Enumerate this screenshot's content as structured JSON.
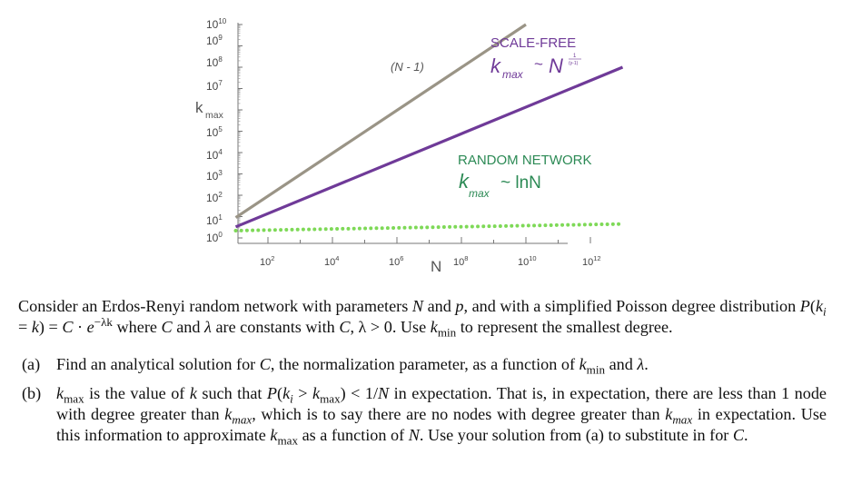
{
  "chart_data": {
    "type": "line",
    "title": "",
    "xlabel": "N",
    "ylabel_main": "k",
    "ylabel_sub": "max",
    "y_ticks": [
      {
        "base": "10",
        "exp": "10"
      },
      {
        "base": "10",
        "exp": "9"
      },
      {
        "base": "10",
        "exp": "8"
      },
      {
        "base": "10",
        "exp": "7"
      },
      {
        "base": "10",
        "exp": "5"
      },
      {
        "base": "10",
        "exp": "4"
      },
      {
        "base": "10",
        "exp": "3"
      },
      {
        "base": "10",
        "exp": "2"
      },
      {
        "base": "10",
        "exp": "1"
      },
      {
        "base": "10",
        "exp": "0"
      }
    ],
    "x_ticks": [
      {
        "base": "10",
        "exp": "2"
      },
      {
        "base": "10",
        "exp": "4"
      },
      {
        "base": "10",
        "exp": "6"
      },
      {
        "base": "10",
        "exp": "8"
      },
      {
        "base": "10",
        "exp": "10"
      },
      {
        "base": "10",
        "exp": "12"
      }
    ],
    "x_scale": "log",
    "y_scale": "log",
    "x_range": [
      10,
      10000000000000
    ],
    "y_range": [
      1,
      10000000000
    ],
    "series": [
      {
        "name": "(N - 1)",
        "color": "#9a9486",
        "style": "solid",
        "x": [
          10,
          10000000000
        ],
        "y": [
          9,
          9999999999
        ]
      },
      {
        "name": "SCALE-FREE",
        "color": "#6f3a98",
        "style": "solid",
        "x": [
          10,
          10000000000000
        ],
        "y": [
          3.3,
          100000000
        ]
      },
      {
        "name": "RANDOM NETWORK",
        "color": "#7ed957",
        "style": "dotted",
        "x": [
          10,
          10000000000000
        ],
        "y": [
          2.2,
          4.5
        ]
      }
    ],
    "annotations": {
      "linear_label": "(N - 1)",
      "scale_free_title": "SCALE-FREE",
      "scale_free_k": "k",
      "scale_free_sub": "max",
      "scale_free_tilde": "~",
      "scale_free_N": "N",
      "scale_free_exp_num": "1",
      "scale_free_exp_den": "(γ-1)",
      "random_title": "RANDOM NETWORK",
      "random_k": "k",
      "random_sub": "max",
      "random_rhs": "~ lnN"
    }
  },
  "problem": {
    "intro": {
      "t1": "Consider an Erdos-Renyi random network with parameters ",
      "N": "N",
      "t2": " and ",
      "p": "p",
      "t3": ", and with a simplified Poisson degree distribution ",
      "formula_P": "P",
      "formula_ki_open": "(",
      "formula_k": "k",
      "formula_i": "i",
      "formula_eq": " = ",
      "formula_k2": "k",
      "formula_close": ") = ",
      "formula_C": "C",
      "formula_dot": " · ",
      "formula_e": "e",
      "formula_exp": "−λk",
      "t4": " where ",
      "C": "C",
      "t5": " and ",
      "lambda": "λ",
      "t6": " are constants with ",
      "cond_C": "C",
      "cond_rest": ", λ > 0",
      "t7": ". Use ",
      "kmin_k": "k",
      "kmin_sub": "min",
      "t8": " to represent the smallest degree."
    },
    "part_a": {
      "marker": "(a)",
      "t1": "Find an analytical solution for ",
      "C": "C",
      "t2": ", the normalization parameter, as a function of ",
      "k": "k",
      "sub": "min",
      "t3": " and ",
      "lambda": "λ",
      "t4": "."
    },
    "part_b": {
      "marker": "(b)",
      "k1": "k",
      "sub1": "max",
      "t1": " is the value of ",
      "k": "k",
      "t2": " such that ",
      "P": "P",
      "open": "(",
      "ki": "k",
      "i": "i",
      "gt": " > ",
      "k2": "k",
      "sub2": "max",
      "close": ") < 1/",
      "N": "N",
      "t3": " in expectation. That is, in expectation, there are less than 1 node with degree greater than ",
      "k3": "k",
      "sub3": "max",
      "t4": ", which is to say there are no nodes with degree greater than ",
      "k4": "k",
      "sub4": "max",
      "t5": " in expectation. Use this information to approximate ",
      "k5": "k",
      "sub5": "max",
      "t6": " as a function of ",
      "N2": "N",
      "t7": ". Use your solution from (a) to substitute in for ",
      "C": "C",
      "t8": "."
    }
  }
}
